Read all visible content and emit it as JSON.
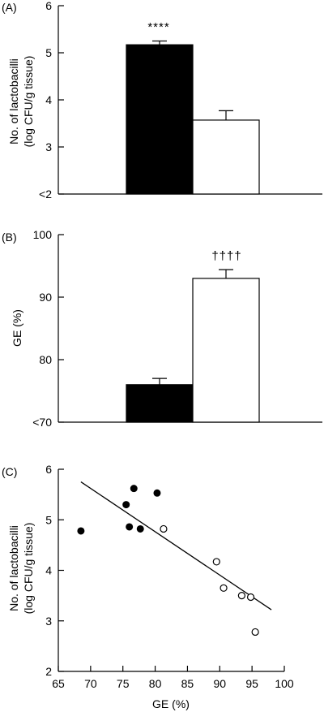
{
  "chart_data": [
    {
      "panel": "(A)",
      "type": "bar",
      "ylabel_lines": [
        "No. of lactobacilli",
        "(log CFU/g tissue)"
      ],
      "y_ticks": [
        "<2",
        "3",
        "4",
        "5",
        "6"
      ],
      "ylim": [
        2,
        6
      ],
      "bars": [
        {
          "value": 5.17,
          "error": 0.08,
          "fill": "#000000"
        },
        {
          "value": 3.57,
          "error": 0.2,
          "fill": "#ffffff"
        }
      ],
      "annotation": "****"
    },
    {
      "panel": "(B)",
      "type": "bar",
      "ylabel_lines": [
        "GE (%)"
      ],
      "y_ticks": [
        "<70",
        "80",
        "90",
        "100"
      ],
      "ylim": [
        70,
        100
      ],
      "bars": [
        {
          "value": 76.0,
          "error": 1.0,
          "fill": "#000000"
        },
        {
          "value": 93.0,
          "error": 1.4,
          "fill": "#ffffff"
        }
      ],
      "annotation": "††††"
    },
    {
      "panel": "(C)",
      "type": "scatter",
      "xlabel": "GE (%)",
      "ylabel_lines": [
        "No. of lactobacilli",
        "(log CFU/g tissue)"
      ],
      "xlim": [
        65,
        100
      ],
      "ylim": [
        2,
        6
      ],
      "x_ticks": [
        "65",
        "70",
        "75",
        "80",
        "85",
        "90",
        "95",
        "100"
      ],
      "y_ticks": [
        "2",
        "3",
        "4",
        "5",
        "6"
      ],
      "filled_points": [
        {
          "x": 68.5,
          "y": 4.78
        },
        {
          "x": 75.5,
          "y": 5.3
        },
        {
          "x": 76.0,
          "y": 4.86
        },
        {
          "x": 76.7,
          "y": 5.62
        },
        {
          "x": 77.7,
          "y": 4.82
        },
        {
          "x": 80.3,
          "y": 5.53
        }
      ],
      "open_points": [
        {
          "x": 81.3,
          "y": 4.82
        },
        {
          "x": 89.5,
          "y": 4.17
        },
        {
          "x": 90.6,
          "y": 3.65
        },
        {
          "x": 93.4,
          "y": 3.5
        },
        {
          "x": 94.8,
          "y": 3.47
        },
        {
          "x": 95.5,
          "y": 2.78
        }
      ],
      "regression_line": {
        "x": [
          68.5,
          98.0
        ],
        "y": [
          5.75,
          3.22
        ]
      }
    }
  ]
}
